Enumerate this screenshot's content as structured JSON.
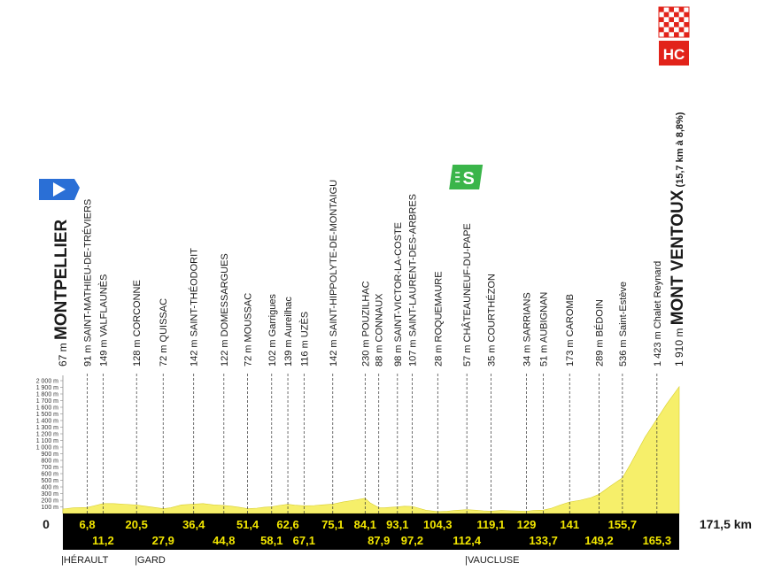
{
  "chart_data": {
    "type": "area",
    "title": "",
    "xlabel": "",
    "ylabel": "",
    "x_unit": "km",
    "y_unit": "m",
    "xlim": [
      0,
      171.5
    ],
    "ylim": [
      0,
      2000
    ],
    "y_ticks": [
      "100 m",
      "200 m",
      "300 m",
      "400 m",
      "500 m",
      "600 m",
      "700 m",
      "800 m",
      "900 m",
      "1 000 m",
      "1 100 m",
      "1 200 m",
      "1 300 m",
      "1 400 m",
      "1 500 m",
      "1 600 m",
      "1 700 m",
      "1 800 m",
      "1 900 m",
      "2 000 m"
    ],
    "start_label": "0",
    "end_label": "171,5 km",
    "area_color": "#f6ef6a",
    "bar_color": "#000000",
    "distance_color": "#f2e600",
    "profile": [
      [
        0,
        67
      ],
      [
        3,
        85
      ],
      [
        6.8,
        91
      ],
      [
        9,
        120
      ],
      [
        11.2,
        149
      ],
      [
        14,
        150
      ],
      [
        17,
        140
      ],
      [
        20.5,
        128
      ],
      [
        23,
        110
      ],
      [
        25,
        95
      ],
      [
        27.9,
        72
      ],
      [
        30,
        85
      ],
      [
        33,
        130
      ],
      [
        36.4,
        142
      ],
      [
        39,
        150
      ],
      [
        42,
        130
      ],
      [
        44.8,
        122
      ],
      [
        47,
        110
      ],
      [
        49,
        95
      ],
      [
        51.4,
        72
      ],
      [
        54,
        80
      ],
      [
        56,
        95
      ],
      [
        58.1,
        102
      ],
      [
        60,
        120
      ],
      [
        62.6,
        139
      ],
      [
        64.5,
        125
      ],
      [
        67.1,
        116
      ],
      [
        70,
        120
      ],
      [
        72,
        130
      ],
      [
        75.1,
        142
      ],
      [
        78,
        175
      ],
      [
        81,
        200
      ],
      [
        84.1,
        230
      ],
      [
        85.5,
        160
      ],
      [
        87.9,
        88
      ],
      [
        89.5,
        85
      ],
      [
        91,
        92
      ],
      [
        93.1,
        98
      ],
      [
        95,
        110
      ],
      [
        97.2,
        107
      ],
      [
        99,
        80
      ],
      [
        101,
        50
      ],
      [
        104.3,
        28
      ],
      [
        107,
        35
      ],
      [
        109,
        45
      ],
      [
        112.4,
        57
      ],
      [
        115,
        50
      ],
      [
        117,
        40
      ],
      [
        119.1,
        35
      ],
      [
        122,
        45
      ],
      [
        125,
        40
      ],
      [
        129,
        34
      ],
      [
        131,
        45
      ],
      [
        133.7,
        51
      ],
      [
        136,
        80
      ],
      [
        138,
        120
      ],
      [
        141,
        173
      ],
      [
        144,
        200
      ],
      [
        147,
        240
      ],
      [
        149.2,
        289
      ],
      [
        152,
        400
      ],
      [
        155.7,
        536
      ],
      [
        158,
        750
      ],
      [
        160,
        950
      ],
      [
        162,
        1150
      ],
      [
        165.3,
        1423
      ],
      [
        168,
        1650
      ],
      [
        171.5,
        1910
      ]
    ],
    "points": [
      {
        "km": 0,
        "km_label": "0",
        "alt": "67 m",
        "name": "MONTPELLIER",
        "big": true,
        "row": "none"
      },
      {
        "km": 6.8,
        "km_label": "6,8",
        "alt": "91 m",
        "name": "SAINT-MATHIEU-DE-TRÉVIERS",
        "big": false,
        "row": "top"
      },
      {
        "km": 11.2,
        "km_label": "11,2",
        "alt": "149 m",
        "name": "VALFLAUNÈS",
        "big": false,
        "row": "bottom"
      },
      {
        "km": 20.5,
        "km_label": "20,5",
        "alt": "128 m",
        "name": "CORCONNE",
        "big": false,
        "row": "top"
      },
      {
        "km": 27.9,
        "km_label": "27,9",
        "alt": "72 m",
        "name": "QUISSAC",
        "big": false,
        "row": "bottom"
      },
      {
        "km": 36.4,
        "km_label": "36,4",
        "alt": "142 m",
        "name": "SAINT-THÉODORIT",
        "big": false,
        "row": "top"
      },
      {
        "km": 44.8,
        "km_label": "44,8",
        "alt": "122 m",
        "name": "DOMESSARGUES",
        "big": false,
        "row": "bottom"
      },
      {
        "km": 51.4,
        "km_label": "51,4",
        "alt": "72 m",
        "name": "MOUSSAC",
        "big": false,
        "row": "top"
      },
      {
        "km": 58.1,
        "km_label": "58,1",
        "alt": "102 m",
        "name": "Garrigues",
        "big": false,
        "row": "bottom"
      },
      {
        "km": 62.6,
        "km_label": "62,6",
        "alt": "139 m",
        "name": "Aureilhac",
        "big": false,
        "row": "top"
      },
      {
        "km": 67.1,
        "km_label": "67,1",
        "alt": "116 m",
        "name": "UZÈS",
        "big": false,
        "row": "bottom"
      },
      {
        "km": 75.1,
        "km_label": "75,1",
        "alt": "142 m",
        "name": "SAINT-HIPPOLYTE-DE-MONTAIGU",
        "big": false,
        "row": "top"
      },
      {
        "km": 84.1,
        "km_label": "84,1",
        "alt": "230 m",
        "name": "POUZILHAC",
        "big": false,
        "row": "top"
      },
      {
        "km": 87.9,
        "km_label": "87,9",
        "alt": "88 m",
        "name": "CONNAUX",
        "big": false,
        "row": "bottom"
      },
      {
        "km": 93.1,
        "km_label": "93,1",
        "alt": "98 m",
        "name": "SAINT-VICTOR-LA-COSTE",
        "big": false,
        "row": "top"
      },
      {
        "km": 97.2,
        "km_label": "97,2",
        "alt": "107 m",
        "name": "SAINT-LAURENT-DES-ARBRES",
        "big": false,
        "row": "bottom"
      },
      {
        "km": 104.3,
        "km_label": "104,3",
        "alt": "28 m",
        "name": "ROQUEMAURE",
        "big": false,
        "row": "top"
      },
      {
        "km": 112.4,
        "km_label": "112,4",
        "alt": "57 m",
        "name": "CHÂTEAUNEUF-DU-PAPE",
        "big": false,
        "row": "bottom"
      },
      {
        "km": 119.1,
        "km_label": "119,1",
        "alt": "35 m",
        "name": "COURTHÉZON",
        "big": false,
        "row": "top"
      },
      {
        "km": 129,
        "km_label": "129",
        "alt": "34 m",
        "name": "SARRIANS",
        "big": false,
        "row": "top"
      },
      {
        "km": 133.7,
        "km_label": "133,7",
        "alt": "51 m",
        "name": "AUBIGNAN",
        "big": false,
        "row": "bottom"
      },
      {
        "km": 141,
        "km_label": "141",
        "alt": "173 m",
        "name": "CAROMB",
        "big": false,
        "row": "top"
      },
      {
        "km": 149.2,
        "km_label": "149,2",
        "alt": "289 m",
        "name": "BÉDOIN",
        "big": false,
        "row": "bottom"
      },
      {
        "km": 155.7,
        "km_label": "155,7",
        "alt": "536 m",
        "name": "Saint-Estève",
        "big": false,
        "row": "top"
      },
      {
        "km": 165.3,
        "km_label": "165,3",
        "alt": "1 423 m",
        "name": "Chalet Reynard",
        "big": false,
        "row": "bottom"
      },
      {
        "km": 171.5,
        "km_label": "",
        "alt": "1 910 m",
        "name": "MONT VENTOUX",
        "big": true,
        "row": "none",
        "extra": "(15,7 km à 8,8%)"
      }
    ],
    "regions": [
      {
        "km": 0,
        "label": "|HÉRAULT"
      },
      {
        "km": 20.5,
        "label": "|GARD"
      },
      {
        "km": 112.4,
        "label": "|VAUCLUSE"
      }
    ],
    "markers": {
      "start_flag_color": "#2a6fd6",
      "sprint_km": 112.4,
      "sprint_label": "S",
      "sprint_color": "#3ab54a",
      "climb_category": "HC",
      "climb_color": "#e2231a"
    }
  }
}
